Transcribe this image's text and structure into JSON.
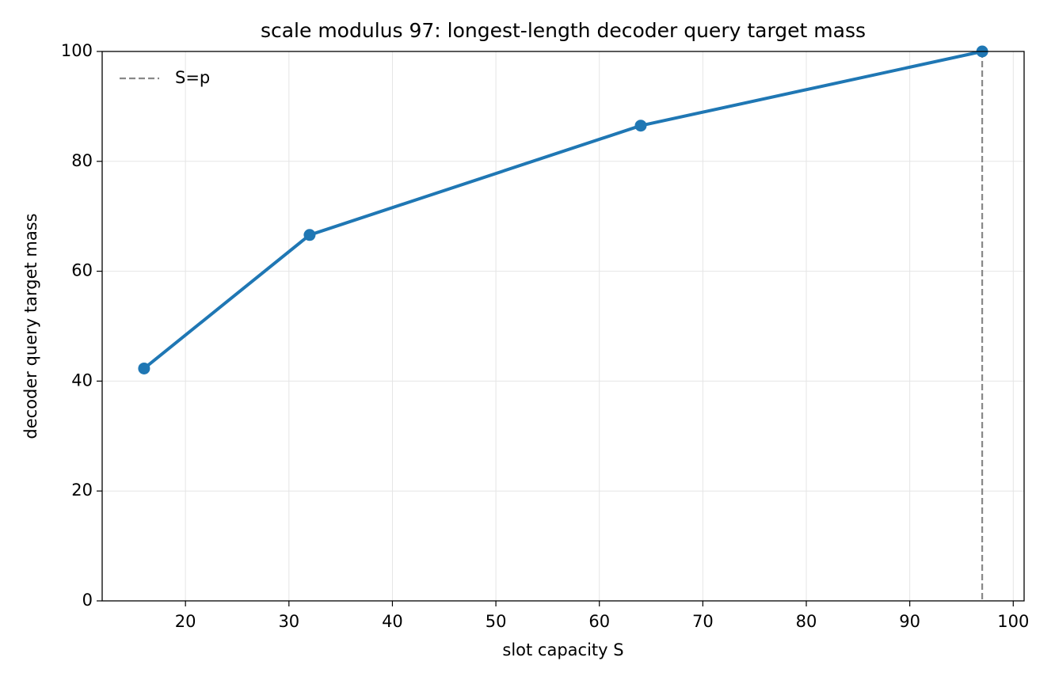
{
  "chart_data": {
    "type": "line",
    "title": "scale modulus 97: longest-length decoder query target mass",
    "x_label": "slot capacity S",
    "y_label": "decoder query target mass",
    "x": [
      16,
      32,
      64,
      97
    ],
    "series": [
      {
        "color": "#1f77b4",
        "values": [
          42.3,
          66.6,
          86.5,
          100
        ]
      }
    ],
    "vlines": [
      {
        "x": 97,
        "label": "S=p",
        "color": "#888888",
        "style": "dashed"
      }
    ],
    "xlim": [
      11.95,
      101.05
    ],
    "ylim": [
      0,
      100
    ],
    "xticks": [
      20,
      30,
      40,
      50,
      60,
      70,
      80,
      90,
      100
    ],
    "yticks": [
      0,
      20,
      40,
      60,
      80,
      100
    ],
    "grid": true,
    "legend": "upper-left"
  }
}
